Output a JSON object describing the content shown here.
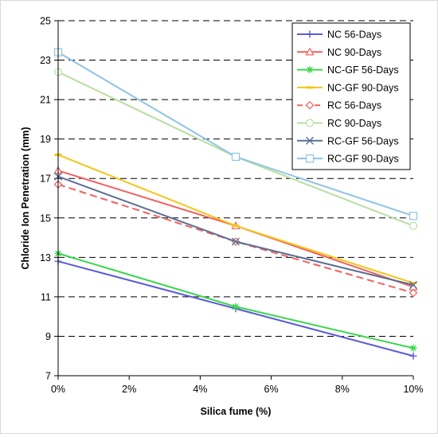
{
  "chart_data": {
    "type": "line",
    "xlabel": "Silica fume (%)",
    "ylabel": "Chloride Ion Penetration (mm)",
    "categories": [
      "0%",
      "2%",
      "4%",
      "6%",
      "8%",
      "10%"
    ],
    "x": [
      0,
      5,
      10
    ],
    "xlim": [
      0,
      10
    ],
    "ylim": [
      7,
      25
    ],
    "yticks": [
      7,
      9,
      11,
      13,
      15,
      17,
      19,
      21,
      23,
      25
    ],
    "ytick_labels": [
      "7",
      "9",
      "11",
      "13",
      "15",
      "17",
      "19",
      "21",
      "23",
      "25"
    ],
    "grid": "horizontal-dashed",
    "legend_position": "top-right",
    "series": [
      {
        "name": "NC 56-Days",
        "values": [
          12.8,
          10.4,
          8.0
        ],
        "color": "#5b5bd6",
        "marker": "plus",
        "dash": "solid"
      },
      {
        "name": "NC 90-Days",
        "values": [
          17.4,
          14.6,
          11.5
        ],
        "color": "#f06060",
        "marker": "triangle",
        "dash": "solid"
      },
      {
        "name": "NC-GF 56-Days",
        "values": [
          13.2,
          10.5,
          8.4
        ],
        "color": "#3ad64a",
        "marker": "asterisk",
        "dash": "solid"
      },
      {
        "name": "NC-GF 90-Days",
        "values": [
          18.2,
          14.6,
          11.7
        ],
        "color": "#f5c518",
        "marker": "dash",
        "dash": "solid"
      },
      {
        "name": "RC 56-Days",
        "values": [
          16.7,
          13.8,
          11.2
        ],
        "color": "#f06060",
        "marker": "diamond",
        "dash": "dashed"
      },
      {
        "name": "RC 90-Days",
        "values": [
          22.4,
          18.1,
          14.6
        ],
        "color": "#b8dea0",
        "marker": "circle",
        "dash": "solid"
      },
      {
        "name": "RC-GF 56-Days",
        "values": [
          17.1,
          13.8,
          11.6
        ],
        "color": "#5a6f92",
        "marker": "x",
        "dash": "solid"
      },
      {
        "name": "RC-GF 90-Days",
        "values": [
          23.4,
          18.1,
          15.1
        ],
        "color": "#8fc4e4",
        "marker": "square",
        "dash": "solid"
      }
    ]
  }
}
